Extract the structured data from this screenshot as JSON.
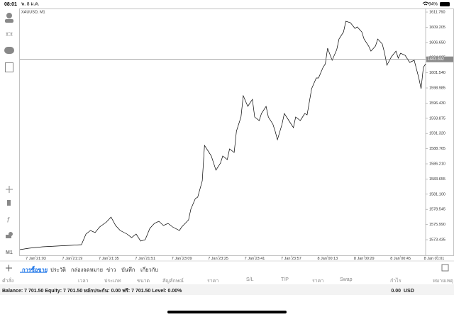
{
  "status_bar": {
    "time": "08:01",
    "date": "พ. 8 ม.ค.",
    "battery": "94%"
  },
  "chart": {
    "type": "line",
    "symbol": "XAUUSD, M1",
    "timeframe": "M1",
    "color": "#000000",
    "x": [
      0,
      4,
      10,
      16,
      22,
      27,
      29,
      31,
      33,
      35,
      38,
      40,
      42,
      44,
      47,
      49,
      51,
      53,
      55,
      57,
      59,
      61,
      63,
      65,
      67,
      70,
      71,
      74,
      75,
      77,
      78,
      80,
      81,
      83,
      84,
      86,
      88,
      89,
      91,
      92,
      94,
      95,
      97,
      98,
      100,
      102,
      103,
      105,
      106,
      108,
      109,
      111,
      112,
      113,
      115,
      116,
      118,
      120,
      121,
      123,
      125,
      126,
      128,
      130,
      131,
      133,
      134,
      135,
      137,
      139,
      140,
      142,
      143,
      145,
      147,
      148,
      150,
      151,
      153,
      154,
      156,
      157,
      159,
      160,
      161,
      163,
      165,
      166,
      167,
      169,
      171,
      173,
      175,
      176,
      177,
      178
    ],
    "values": [
      1571.76,
      1572.0,
      1572.24,
      1572.36,
      1572.48,
      1572.6,
      1574.39,
      1574.99,
      1574.63,
      1575.58,
      1576.42,
      1577.25,
      1575.82,
      1574.99,
      1574.39,
      1573.79,
      1574.39,
      1573.2,
      1573.44,
      1575.34,
      1576.18,
      1576.54,
      1575.82,
      1576.18,
      1575.58,
      1574.99,
      1575.58,
      1576.77,
      1578.57,
      1580.36,
      1580.6,
      1583.34,
      1589.31,
      1588.12,
      1587.52,
      1585.14,
      1586.33,
      1587.52,
      1586.93,
      1588.72,
      1588.12,
      1591.7,
      1594.09,
      1597.67,
      1595.88,
      1597.07,
      1594.09,
      1593.49,
      1594.69,
      1595.88,
      1594.09,
      1592.89,
      1591.7,
      1590.27,
      1592.89,
      1594.69,
      1593.49,
      1592.3,
      1594.09,
      1593.49,
      1594.69,
      1594.45,
      1598.86,
      1600.66,
      1600.66,
      1602.45,
      1603.04,
      1605.67,
      1603.64,
      1605.43,
      1607.22,
      1608.42,
      1610.21,
      1609.97,
      1609.01,
      1609.25,
      1608.42,
      1607.22,
      1606.03,
      1605.19,
      1606.03,
      1607.22,
      1606.39,
      1604.83,
      1602.81,
      1604.24,
      1605.19,
      1604.0,
      1604.83,
      1604.48,
      1603.28,
      1603.64,
      1600.66,
      1598.86,
      1602.45,
      1603.04
    ],
    "xlim": [
      0,
      178
    ],
    "ylim": [
      1570.81,
      1612.36
    ],
    "yticks": [
      {
        "value": 1611.76,
        "label": "1611.760"
      },
      1609.205,
      {
        "value": 1606.65,
        "label": "1606.650"
      },
      1604.095,
      {
        "value": 1601.54,
        "label": "1601.540"
      },
      1598.985,
      {
        "value": 1596.43,
        "label": "1596.430"
      },
      1593.875,
      {
        "value": 1591.32,
        "label": "1591.320"
      },
      1588.765,
      {
        "value": 1586.21,
        "label": "1586.210"
      },
      1583.655,
      {
        "value": 1581.1,
        "label": "1581.100"
      },
      1578.545,
      {
        "value": 1575.99,
        "label": "1575.990"
      },
      1573.435
    ],
    "xticks": [
      {
        "value": 7,
        "label": "7 Jan 21:03"
      },
      {
        "value": 23,
        "label": "7 Jan 21:19"
      },
      {
        "value": 39,
        "label": "7 Jan 21:35"
      },
      {
        "value": 55,
        "label": "7 Jan 21:51"
      },
      {
        "value": 71,
        "label": "7 Jan 23:09"
      },
      {
        "value": 87,
        "label": "7 Jan 23:25"
      },
      {
        "value": 103,
        "label": "7 Jan 23:41"
      },
      {
        "value": 119,
        "label": "7 Jan 23:57"
      },
      {
        "value": 135,
        "label": "8 Jan 00:13"
      },
      {
        "value": 151,
        "label": "8 Jan 00:29"
      },
      {
        "value": 167,
        "label": "8 Jan 00:45"
      },
      {
        "value": 183,
        "label": "8 Jan 01:01"
      }
    ],
    "current_price": 1603.802
  },
  "tabs": [
    "การซื้อขาย",
    "ประวัติ",
    "กล่องจดหมาย",
    "ข่าว",
    "บันทึก",
    "เกี่ยวกับ"
  ],
  "columns": [
    "คำสั่ง",
    "เวลา",
    "ประเภท",
    "ขนาด",
    "สัญลักษณ์",
    "ราคา",
    "S/L",
    "T/P",
    "ราคา",
    "Swap",
    "กำไร",
    "หมายเหตุ"
  ],
  "balance": {
    "summary": "Balance: 7 701.50 Equity: 7 701.50 หลักประกัน: 0.00 ฟรี: 7 701.50 Level: 0.00%",
    "profit": "0.00",
    "currency": "USD"
  }
}
